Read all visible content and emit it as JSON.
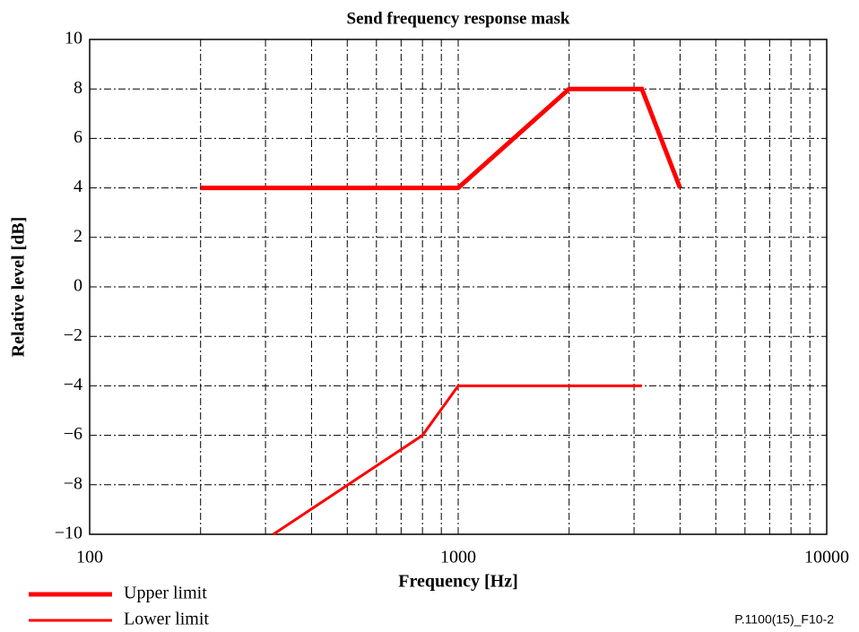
{
  "chart_data": {
    "type": "line",
    "title": "Send frequency response mask",
    "x_label": "Frequency [Hz]",
    "y_label": "Relative level [dB]",
    "x_log": true,
    "xlim": [
      100,
      10000
    ],
    "xticks": [
      100,
      1000,
      10000
    ],
    "x_minor_grid": [
      200,
      300,
      400,
      500,
      600,
      700,
      800,
      900,
      2000,
      3000,
      4000,
      5000,
      6000,
      7000,
      8000,
      9000
    ],
    "ylim": [
      -10,
      10
    ],
    "yticks": [
      {
        "value": -10,
        "label": "−10"
      },
      {
        "value": -8,
        "label": "−8"
      },
      {
        "value": -6,
        "label": "−6"
      },
      {
        "value": -4,
        "label": "−4"
      },
      {
        "value": -2,
        "label": "−2"
      },
      0,
      2,
      4,
      6,
      8,
      10
    ],
    "grid": true,
    "legend": "below-left",
    "series": [
      {
        "name": "Upper limit",
        "color": "#ff0000",
        "line_width": 5,
        "x": [
          200,
          1000,
          2000,
          3150,
          4000
        ],
        "values": [
          4,
          4,
          8,
          8,
          4
        ]
      },
      {
        "name": "Lower limit",
        "color": "#ff0000",
        "line_width": 3,
        "x": [
          315,
          800,
          1000,
          3150
        ],
        "values": [
          -10,
          -6,
          -4,
          -4
        ]
      }
    ],
    "footnote": "P.1100(15)_F10-2"
  }
}
